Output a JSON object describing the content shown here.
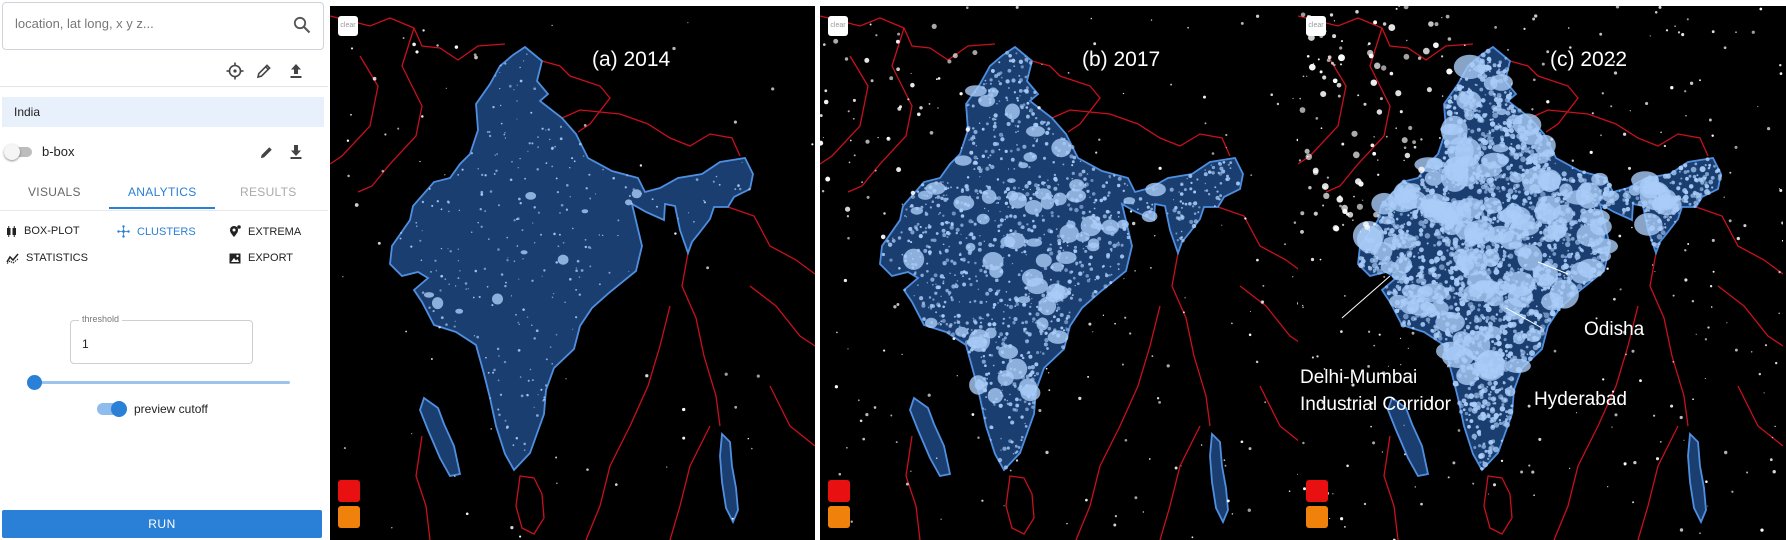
{
  "search": {
    "placeholder": "location, lat long, x y z..."
  },
  "icons": [
    "search-icon",
    "crosshair-icon",
    "pencil-icon",
    "upload-icon",
    "download-icon",
    "boxplot-icon",
    "clusters-icon",
    "extrema-icon",
    "statistics-icon",
    "export-icon"
  ],
  "region": {
    "name": "India"
  },
  "bbox": {
    "label": "b-box"
  },
  "tabs": [
    {
      "label": "VISUALS"
    },
    {
      "label": "ANALYTICS"
    },
    {
      "label": "RESULTS"
    }
  ],
  "analytics": {
    "options": [
      {
        "label": "BOX-PLOT"
      },
      {
        "label": "CLUSTERS"
      },
      {
        "label": "EXTREMA"
      },
      {
        "label": "STATISTICS"
      },
      {
        "label": "EXPORT"
      }
    ]
  },
  "threshold": {
    "label": "threshold",
    "value": "1",
    "slider_fraction": 0.0
  },
  "preview": {
    "label": "preview cutoff",
    "enabled": true
  },
  "run": {
    "label": "RUN"
  },
  "maps": [
    {
      "caption": "(a) 2014",
      "clear_label": "clear"
    },
    {
      "caption": "(b) 2017",
      "clear_label": "clear"
    },
    {
      "caption": "(c) 2022",
      "clear_label": "clear"
    }
  ],
  "annotations": {
    "odisha": "Odisha",
    "hyderabad": "Hyderabad",
    "corridor_line1": "Delhi-Mumbai",
    "corridor_line2": "Industrial Corridor"
  },
  "colors": {
    "accent": "#2a7fd6",
    "region_fill": "#1b3e70",
    "region_outline": "#4f8fe0",
    "lights": "#a9ccf7",
    "border": "#c8101e",
    "swatch_red": "#e81010",
    "swatch_orange": "#f0820c"
  }
}
